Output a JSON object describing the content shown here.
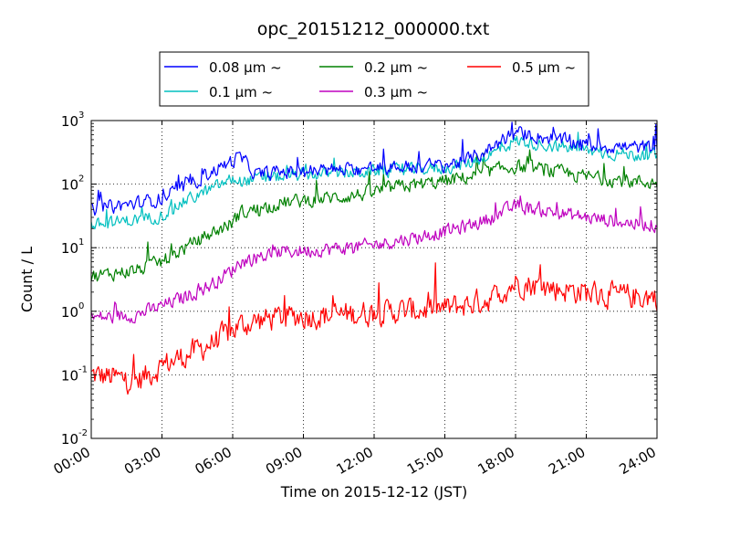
{
  "chart_data": {
    "type": "line",
    "title": "opc_20151212_000000.txt",
    "xlabel": "Time on 2015-12-12 (JST)",
    "ylabel": "Count / L",
    "xscale": "time",
    "yscale": "log",
    "xlim": [
      "00:00",
      "24:00"
    ],
    "ylim": [
      0.01,
      1000
    ],
    "x_tick_labels": [
      "00:00",
      "03:00",
      "06:00",
      "09:00",
      "12:00",
      "15:00",
      "18:00",
      "21:00",
      "24:00"
    ],
    "y_ticks": [
      {
        "base": "10",
        "exp": "-2",
        "value": 0.01
      },
      {
        "base": "10",
        "exp": "-1",
        "value": 0.1
      },
      {
        "base": "10",
        "exp": "0",
        "value": 1
      },
      {
        "base": "10",
        "exp": "1",
        "value": 10
      },
      {
        "base": "10",
        "exp": "2",
        "value": 100
      },
      {
        "base": "10",
        "exp": "3",
        "value": 1000
      }
    ],
    "grid": true,
    "legend": {
      "placement": "top",
      "columns": 3
    },
    "x_hours": [
      0,
      1,
      2,
      3,
      4,
      5,
      6,
      6.3,
      7,
      8,
      9,
      10,
      11,
      12,
      13,
      14,
      15,
      16,
      17,
      18,
      19,
      20,
      21,
      22,
      23,
      24
    ],
    "series": [
      {
        "name": "0.08 μm ~",
        "color": "#0000ff",
        "noise": 0.1,
        "values": [
          40,
          45,
          50,
          60,
          90,
          150,
          230,
          270,
          140,
          155,
          160,
          165,
          170,
          180,
          185,
          190,
          200,
          240,
          380,
          650,
          560,
          480,
          420,
          390,
          380,
          370
        ]
      },
      {
        "name": "0.1 μm ~",
        "color": "#00bfbf",
        "noise": 0.09,
        "values": [
          22,
          25,
          28,
          32,
          55,
          80,
          120,
          110,
          120,
          130,
          140,
          145,
          150,
          160,
          165,
          170,
          180,
          210,
          300,
          480,
          430,
          380,
          340,
          310,
          290,
          280
        ]
      },
      {
        "name": "0.2 μm ~",
        "color": "#008000",
        "noise": 0.1,
        "values": [
          3.5,
          4,
          4.5,
          6,
          10,
          16,
          25,
          35,
          40,
          50,
          55,
          60,
          65,
          75,
          90,
          100,
          110,
          130,
          160,
          190,
          170,
          150,
          130,
          120,
          110,
          105
        ]
      },
      {
        "name": "0.3 μm ~",
        "color": "#bf00bf",
        "noise": 0.1,
        "values": [
          0.8,
          0.8,
          0.9,
          1.2,
          1.7,
          2.5,
          4.5,
          6,
          7,
          8.5,
          9,
          9.5,
          10,
          11,
          13,
          15,
          18,
          22,
          30,
          45,
          40,
          34,
          30,
          27,
          24,
          23
        ]
      },
      {
        "name": "0.5 μm ~",
        "color": "#ff0000",
        "noise": 0.18,
        "values": [
          0.1,
          0.09,
          0.08,
          0.14,
          0.2,
          0.3,
          0.5,
          0.6,
          0.7,
          0.8,
          0.85,
          0.85,
          0.9,
          0.95,
          1.0,
          1.05,
          1.1,
          1.3,
          1.6,
          2.8,
          2.5,
          2.2,
          2.0,
          1.8,
          1.7,
          1.7
        ]
      }
    ]
  }
}
